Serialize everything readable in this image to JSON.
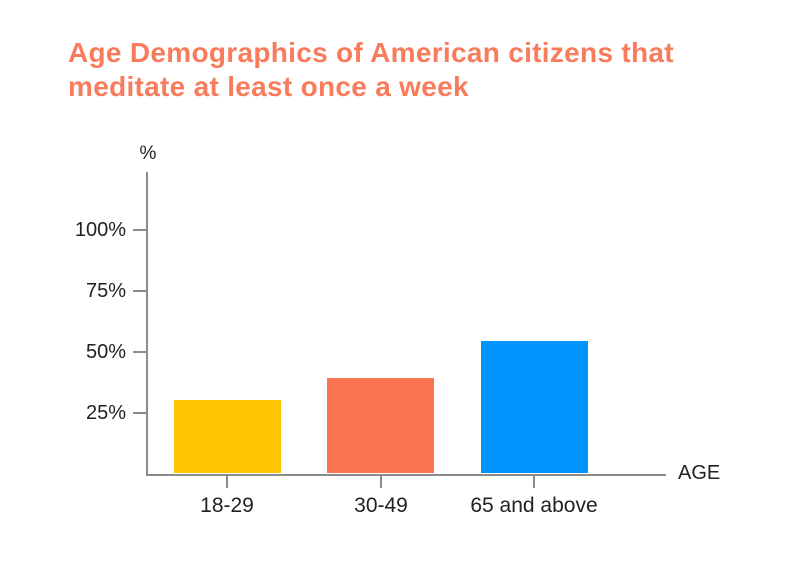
{
  "chart_data": {
    "type": "bar",
    "title": "Age Demographics of American citizens that\nmeditate at least once a week",
    "title_color": "#F87B5C",
    "categories": [
      "18-29",
      "30-49",
      "65 and above"
    ],
    "values": [
      30,
      39,
      54
    ],
    "bar_colors": [
      "#FFC402",
      "#FA7452",
      "#0094FF"
    ],
    "xlabel": "AGE",
    "ylabel": "%",
    "yticks": [
      25,
      50,
      75,
      100
    ],
    "ytick_suffix": "%",
    "ylim": [
      0,
      123
    ],
    "grid": false,
    "legend": false,
    "axis_color": "#8C8C8C",
    "label_color": "#222222"
  }
}
